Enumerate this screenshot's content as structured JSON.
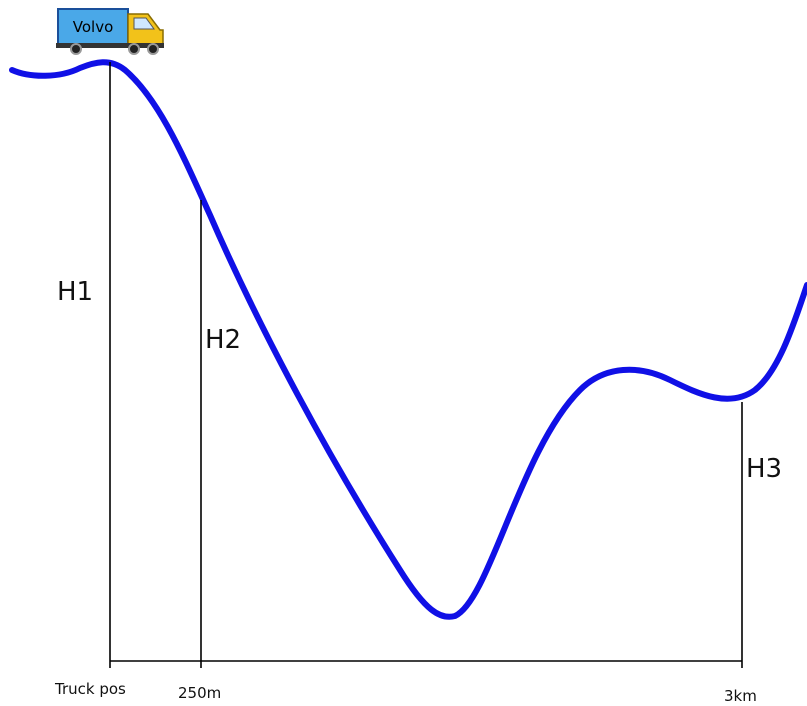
{
  "truck": {
    "label": "Volvo"
  },
  "heights": [
    "H1",
    "H2",
    "H3"
  ],
  "positions": [
    "Truck pos",
    "250m",
    "3km"
  ]
}
